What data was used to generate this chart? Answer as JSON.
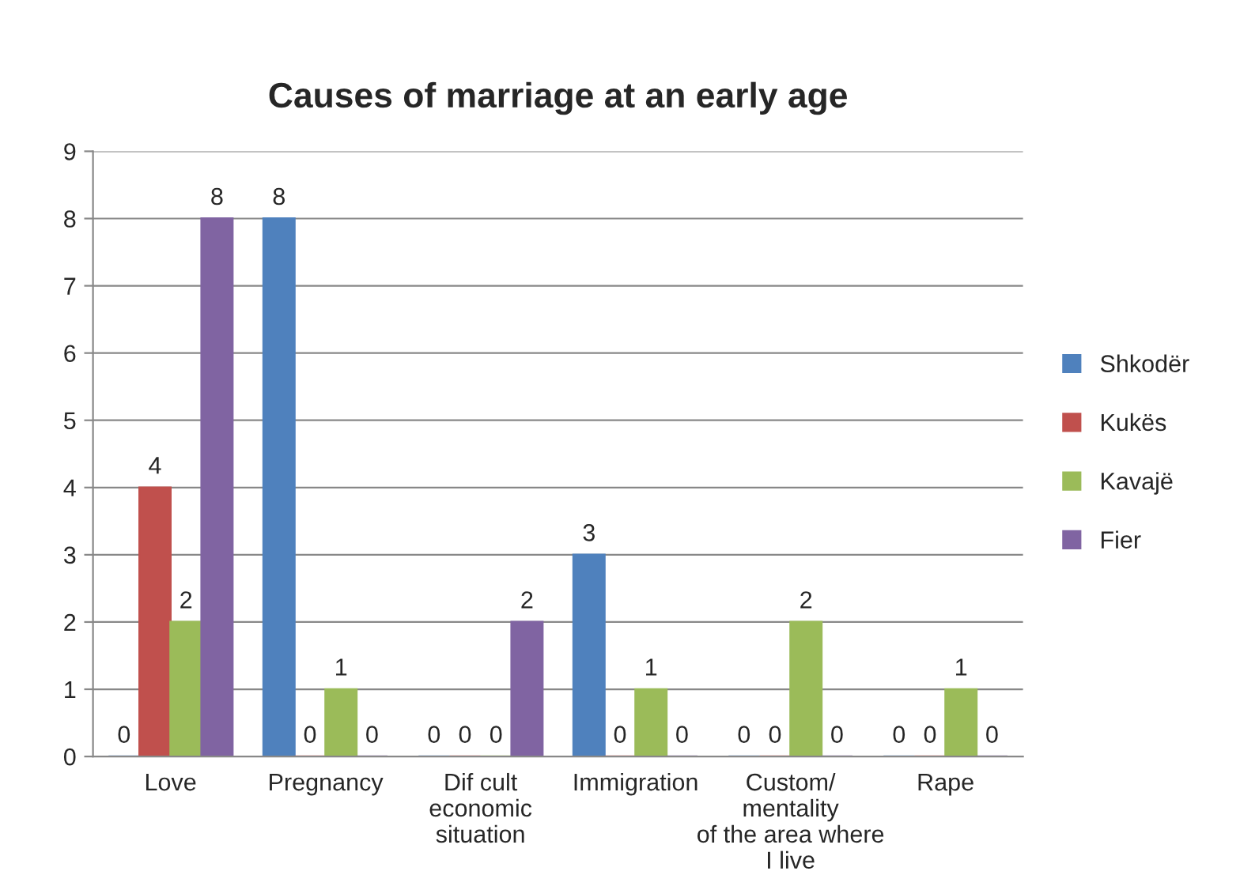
{
  "chart_data": {
    "type": "bar",
    "title": "Causes of marriage at an early age",
    "categories": [
      "Love",
      "Pregnancy",
      "Dif cult\neconomic\nsituation",
      "Immigration",
      "Custom/\nmentality\nof the area where\nI live",
      "Rape"
    ],
    "series": [
      {
        "name": "Shkodër",
        "color": "#4f81bd",
        "values": [
          0,
          8,
          0,
          3,
          0,
          0
        ]
      },
      {
        "name": "Kukës",
        "color": "#c0504d",
        "values": [
          4,
          0,
          0,
          0,
          0,
          0
        ]
      },
      {
        "name": "Kavajë",
        "color": "#9bbb59",
        "values": [
          2,
          1,
          0,
          1,
          2,
          1
        ]
      },
      {
        "name": "Fier",
        "color": "#8064a2",
        "values": [
          8,
          0,
          2,
          0,
          0,
          0
        ]
      }
    ],
    "ylim": [
      0,
      9
    ],
    "yticks": [
      0,
      1,
      2,
      3,
      4,
      5,
      6,
      7,
      8,
      9
    ],
    "grid": "y",
    "legend": "right",
    "data_labels": true
  }
}
